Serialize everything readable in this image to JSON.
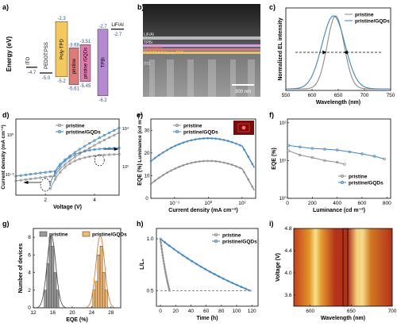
{
  "panel_labels": [
    "a)",
    "b)",
    "c)",
    "d)",
    "e)",
    "f)",
    "g)",
    "h)",
    "i)"
  ],
  "colors": {
    "pristine": "#8c8c8c",
    "gqds": "#3d86c6",
    "bar_gray": "#9a9a9a",
    "bar_orange": "#f6b86b"
  },
  "panel_a": {
    "ylabel": "Energy (eV)",
    "layers": [
      {
        "name": "ITO",
        "top": null,
        "bottom": -4.7,
        "color": ""
      },
      {
        "name": "PEDOT:PSS",
        "top": null,
        "bottom": -5.0,
        "color": ""
      },
      {
        "name": "Poly-TPD",
        "top": -2.3,
        "bottom": -5.2,
        "color": "#f3c85c"
      },
      {
        "name": "pristine",
        "top": -3.68,
        "bottom": -5.61,
        "color": "#e07a7a"
      },
      {
        "name": "pristine /GQDs",
        "top": -3.51,
        "bottom": -5.45,
        "color": "#e27bb0"
      },
      {
        "name": "TPBi",
        "top": -2.7,
        "bottom": -6.2,
        "color": "#b58ad0"
      },
      {
        "name": "LiF/Al",
        "top": null,
        "bottom": -2.7,
        "color": ""
      }
    ],
    "labels": {
      "ito_val": "-4.7",
      "pedot_val": "-5.0",
      "poly_top": "-2.3",
      "poly_bot": "-5.2",
      "pr_top": "-3.68",
      "pr_bot": "-5.61",
      "gq_top": "-3.51",
      "gq_bot": "-5.45",
      "tpbi_top": "-2.7",
      "tpbi_bot": "-6.2",
      "lif_val": "-2.7"
    }
  },
  "panel_b": {
    "layers": [
      "LiF/Al",
      "TPBi",
      "Perovskite",
      "PEDOT:PSS/poly-TPD",
      "ITO"
    ],
    "scalebar": "300 nm"
  },
  "chart_data": [
    {
      "panel": "c",
      "type": "line",
      "xlabel": "Wavelength (nm)",
      "ylabel": "Normalized EL intensity",
      "xlim": [
        550,
        750
      ],
      "xticks": [
        "550",
        "600",
        "650",
        "700",
        "750"
      ],
      "series": [
        {
          "name": "pristine",
          "peak": 645,
          "fwhm": 38
        },
        {
          "name": "pristine/GQDs",
          "peak": 641,
          "fwhm": 52
        }
      ],
      "legend": [
        "pristine",
        "pristine/GQDs"
      ]
    },
    {
      "panel": "d",
      "type": "line",
      "xlabel": "Voltage (V)",
      "ylabel_left": "Current density (mA cm⁻²)",
      "ylabel_right": "Luminance (cd m⁻²)",
      "xticks": [
        "2",
        "4"
      ],
      "yticks_left": [
        "10⁻³",
        "10⁰"
      ],
      "yticks_right": [
        "10²",
        "10⁴"
      ],
      "legend": [
        "pristine",
        "pristine/GQDs"
      ]
    },
    {
      "panel": "e",
      "type": "line",
      "xlabel": "Current density (mA cm⁻²)",
      "ylabel": "EQE (%)",
      "ylabel_secondary": "Luminance (cd m⁻²)",
      "xscale": "log",
      "xticks": [
        "10⁻¹",
        "10⁰",
        "10¹"
      ],
      "yticks": [
        "0",
        "10",
        "20",
        "30"
      ],
      "legend": [
        "pristine",
        "pristine/GQDs"
      ]
    },
    {
      "panel": "f",
      "type": "line",
      "xlabel": "Luminance (cd m⁻²)",
      "ylabel": "EQE (%)",
      "xticks": [
        "0",
        "200",
        "400",
        "600",
        "800"
      ],
      "yticks": [
        "10⁰",
        "10¹",
        "10²"
      ],
      "yscale": "log",
      "series": [
        {
          "name": "pristine",
          "x": [
            10,
            100,
            200,
            300,
            400,
            460
          ],
          "y": [
            18,
            14,
            12,
            10,
            9,
            8
          ]
        },
        {
          "name": "pristine/GQDs",
          "x": [
            10,
            100,
            200,
            300,
            400,
            500,
            600,
            700,
            780
          ],
          "y": [
            25,
            23,
            21,
            20,
            19,
            17,
            15,
            13,
            11
          ]
        }
      ],
      "legend": [
        "pristine",
        "pristine/GQDs"
      ]
    },
    {
      "panel": "g",
      "type": "bar",
      "xlabel": "EQE (%)",
      "ylabel": "Number of devices",
      "xticks": [
        "12",
        "16",
        "20",
        "24",
        "28"
      ],
      "yticks": [
        "0",
        "2",
        "4",
        "6",
        "8"
      ],
      "series": [
        {
          "name": "pristine",
          "bins": [
            14.5,
            15.0,
            15.5,
            16.0,
            16.5,
            17.0
          ],
          "counts": [
            2,
            5,
            8,
            7,
            4,
            2
          ]
        },
        {
          "name": "pristine/GQDs",
          "bins": [
            24.5,
            25.0,
            25.5,
            26.0,
            26.5,
            27.0
          ],
          "counts": [
            2,
            3,
            6,
            7,
            4,
            2
          ]
        }
      ],
      "legend": [
        "pristine",
        "pristine/GQDs"
      ]
    },
    {
      "panel": "h",
      "type": "line",
      "xlabel": "Time (h)",
      "ylabel": "L/L₀",
      "xticks": [
        "0",
        "20",
        "40",
        "60",
        "80",
        "100",
        "120"
      ],
      "yticks": [
        "0.5",
        "1.0"
      ],
      "series": [
        {
          "name": "pristine",
          "t50": 12
        },
        {
          "name": "pristine/GQDs",
          "t50": 118
        }
      ],
      "reference_line": 0.5,
      "legend": [
        "pristine",
        "pristine/GQDs"
      ]
    },
    {
      "panel": "i",
      "type": "heatmap",
      "xlabel": "Wavelength (nm)",
      "ylabel": "Voltage (V)",
      "xticks": [
        "600",
        "650",
        "700"
      ],
      "yticks": [
        "3.6",
        "4.0",
        "4.4",
        "4.8"
      ]
    }
  ]
}
